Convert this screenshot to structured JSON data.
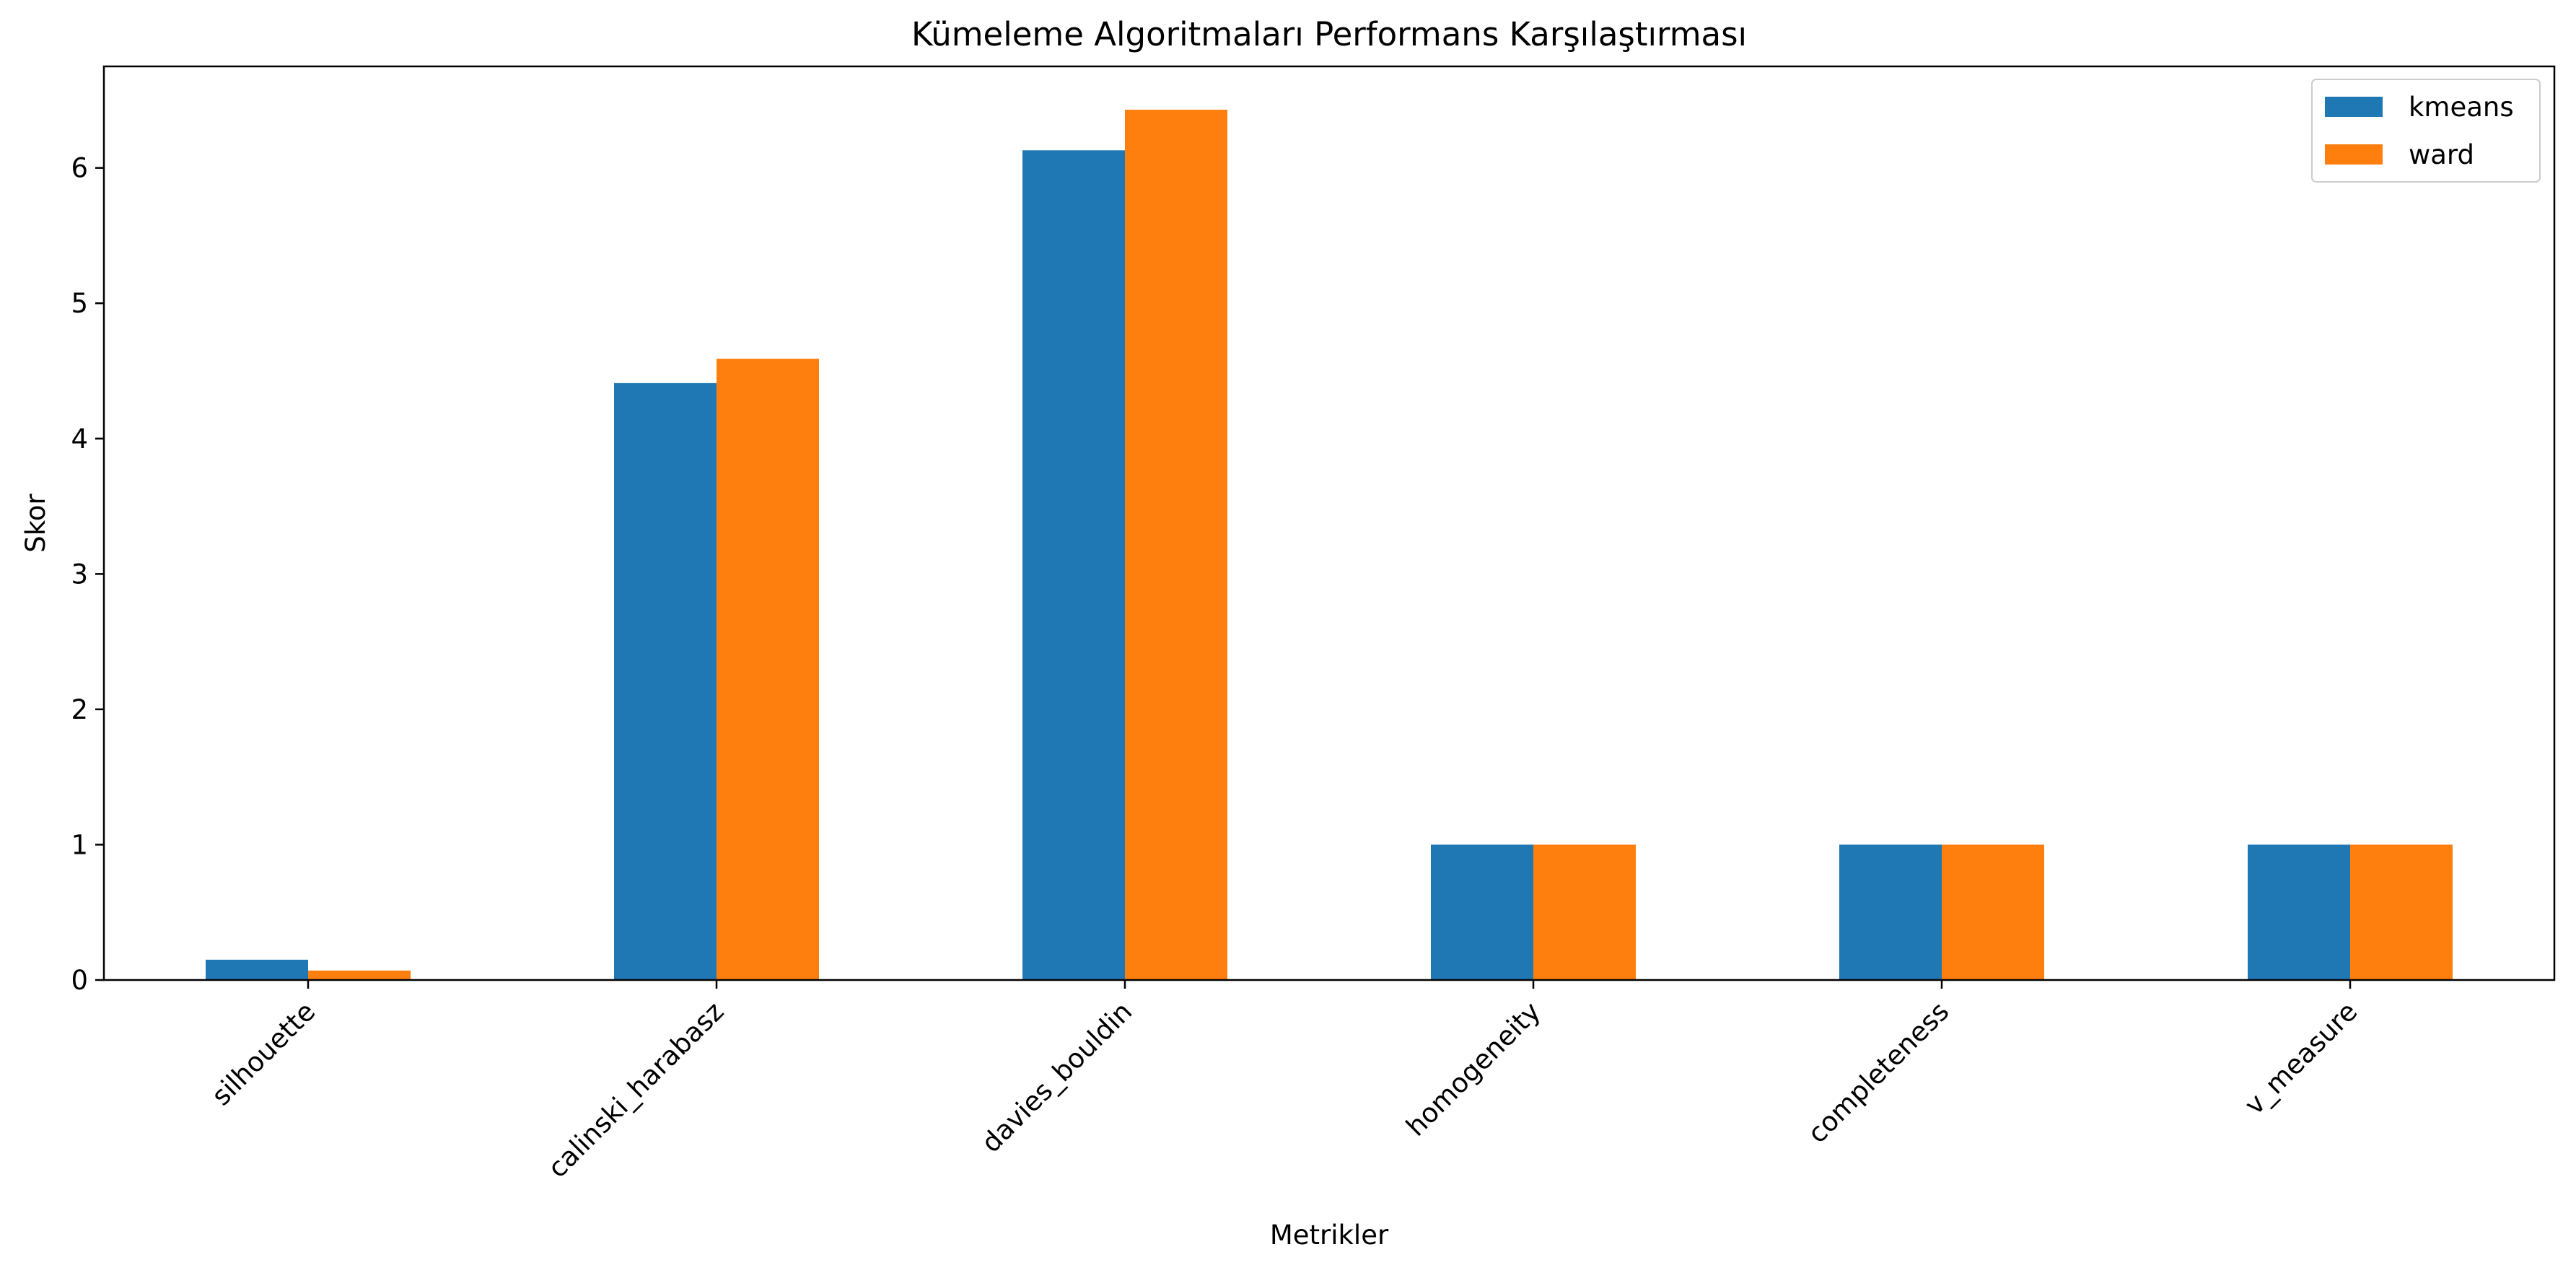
{
  "chart_data": {
    "type": "bar",
    "title": "Kümeleme Algoritmaları Performans Karşılaştırması",
    "xlabel": "Metrikler",
    "ylabel": "Skor",
    "categories": [
      "silhouette",
      "calinski_harabasz",
      "davies_bouldin",
      "homogeneity",
      "completeness",
      "v_measure"
    ],
    "series": [
      {
        "name": "kmeans",
        "color": "#1f77b4",
        "values": [
          0.15,
          4.41,
          6.13,
          1.0,
          1.0,
          1.0
        ]
      },
      {
        "name": "ward",
        "color": "#ff7f0e",
        "values": [
          0.07,
          4.59,
          6.43,
          1.0,
          1.0,
          1.0
        ]
      }
    ],
    "yticks": [
      "0",
      "1",
      "2",
      "3",
      "4",
      "5",
      "6"
    ],
    "ylim": [
      0,
      6.75
    ],
    "grid": false,
    "legend_position": "top-right"
  }
}
